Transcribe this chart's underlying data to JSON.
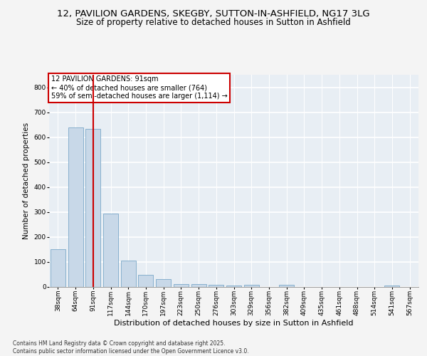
{
  "title1": "12, PAVILION GARDENS, SKEGBY, SUTTON-IN-ASHFIELD, NG17 3LG",
  "title2": "Size of property relative to detached houses in Sutton in Ashfield",
  "xlabel": "Distribution of detached houses by size in Sutton in Ashfield",
  "ylabel": "Number of detached properties",
  "categories": [
    "38sqm",
    "64sqm",
    "91sqm",
    "117sqm",
    "144sqm",
    "170sqm",
    "197sqm",
    "223sqm",
    "250sqm",
    "276sqm",
    "303sqm",
    "329sqm",
    "356sqm",
    "382sqm",
    "409sqm",
    "435sqm",
    "461sqm",
    "488sqm",
    "514sqm",
    "541sqm",
    "567sqm"
  ],
  "values": [
    150,
    638,
    633,
    292,
    105,
    47,
    29,
    11,
    11,
    8,
    5,
    8,
    0,
    7,
    0,
    0,
    0,
    0,
    0,
    5,
    0
  ],
  "bar_color": "#c8d8e8",
  "bar_edge_color": "#7aa8c8",
  "vline_x_index": 2,
  "vline_color": "#cc0000",
  "annotation_text": "12 PAVILION GARDENS: 91sqm\n← 40% of detached houses are smaller (764)\n59% of semi-detached houses are larger (1,114) →",
  "annotation_box_color": "#cc0000",
  "ylim": [
    0,
    850
  ],
  "yticks": [
    0,
    100,
    200,
    300,
    400,
    500,
    600,
    700,
    800
  ],
  "bg_color": "#e8eef4",
  "grid_color": "#ffffff",
  "fig_bg_color": "#f4f4f4",
  "footer_text": "Contains HM Land Registry data © Crown copyright and database right 2025.\nContains public sector information licensed under the Open Government Licence v3.0.",
  "title1_fontsize": 9.5,
  "title2_fontsize": 8.5,
  "xlabel_fontsize": 8,
  "ylabel_fontsize": 7.5,
  "tick_fontsize": 6.5,
  "annotation_fontsize": 7,
  "footer_fontsize": 5.5
}
